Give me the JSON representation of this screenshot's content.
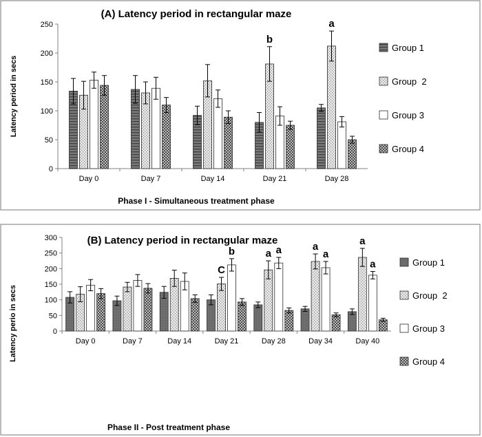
{
  "chart_data": [
    {
      "type": "bar",
      "title": "(A)  Latency period in rectangular maze",
      "xlabel": "Phase I - Simultaneous treatment phase",
      "ylabel": "Latency period in secs",
      "ylim": [
        0,
        250
      ],
      "yticks": [
        0,
        50,
        100,
        150,
        200,
        250
      ],
      "categories": [
        "Day 0",
        "Day 7",
        "Day 14",
        "Day 21",
        "Day 28"
      ],
      "legend_position": "right",
      "series": [
        {
          "name": "Group 1",
          "pattern": "hlines",
          "values": [
            134,
            137,
            92,
            80,
            105
          ],
          "errors": [
            22,
            24,
            16,
            17,
            6
          ]
        },
        {
          "name": "Group  2",
          "pattern": "dots",
          "values": [
            127,
            131,
            152,
            181,
            212
          ],
          "errors": [
            24,
            19,
            28,
            30,
            26
          ]
        },
        {
          "name": "Group 3",
          "pattern": "white",
          "values": [
            153,
            139,
            121,
            91,
            81
          ],
          "errors": [
            14,
            19,
            15,
            16,
            9
          ]
        },
        {
          "name": "Group 4",
          "pattern": "checker",
          "values": [
            144,
            110,
            89,
            75,
            50
          ],
          "errors": [
            17,
            13,
            11,
            7,
            6
          ]
        }
      ],
      "annotations": [
        {
          "text": "b",
          "category": "Day 21",
          "series": "Group  2"
        },
        {
          "text": "a",
          "category": "Day 28",
          "series": "Group  2"
        }
      ]
    },
    {
      "type": "bar",
      "title": "(B)  Latency period in rectangular maze",
      "xlabel": "Phase II - Post treatment phase",
      "ylabel": "Latency perio in secs",
      "ylim": [
        0,
        300
      ],
      "yticks": [
        0,
        50,
        100,
        150,
        200,
        250,
        300
      ],
      "categories": [
        "Day 0",
        "Day 7",
        "Day 14",
        "Day 21",
        "Day 28",
        "Day 34",
        "Day 40"
      ],
      "legend_position": "right",
      "series": [
        {
          "name": "Group 1",
          "pattern": "dark",
          "values": [
            108,
            97,
            124,
            100,
            84,
            71,
            62
          ],
          "errors": [
            18,
            15,
            19,
            16,
            9,
            8,
            9
          ]
        },
        {
          "name": "Group  2",
          "pattern": "dots",
          "values": [
            118,
            141,
            169,
            151,
            196,
            223,
            236
          ],
          "errors": [
            24,
            15,
            26,
            21,
            29,
            24,
            29
          ]
        },
        {
          "name": "Group 3",
          "pattern": "white",
          "values": [
            147,
            162,
            159,
            212,
            218,
            203,
            179
          ],
          "errors": [
            18,
            19,
            27,
            20,
            18,
            20,
            12
          ]
        },
        {
          "name": "Group 4",
          "pattern": "checker",
          "values": [
            120,
            137,
            104,
            93,
            66,
            52,
            36
          ],
          "errors": [
            16,
            15,
            12,
            11,
            8,
            6,
            5
          ]
        }
      ],
      "annotations": [
        {
          "text": "C",
          "category": "Day 21",
          "series": "Group  2"
        },
        {
          "text": "b",
          "category": "Day 21",
          "series": "Group 3"
        },
        {
          "text": "a",
          "category": "Day 28",
          "series": "Group  2"
        },
        {
          "text": "a",
          "category": "Day 28",
          "series": "Group 3"
        },
        {
          "text": "a",
          "category": "Day 34",
          "series": "Group  2"
        },
        {
          "text": "a",
          "category": "Day 34",
          "series": "Group 3"
        },
        {
          "text": "a",
          "category": "Day 40",
          "series": "Group  2"
        },
        {
          "text": "a",
          "category": "Day 40",
          "series": "Group 3"
        }
      ]
    }
  ]
}
